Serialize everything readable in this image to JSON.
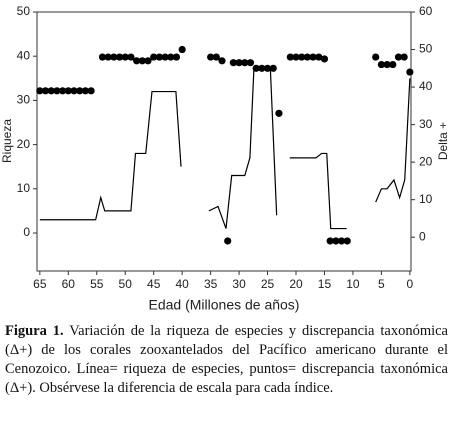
{
  "chart_data": {
    "type": "combo",
    "xlabel": "Edad (Millones de años)",
    "ylabel": "Riqueza",
    "y2label": "Delta +",
    "xlim": [
      65.5,
      -0.2
    ],
    "xticks": [
      65,
      60,
      55,
      50,
      45,
      40,
      35,
      30,
      25,
      20,
      15,
      10,
      5,
      0
    ],
    "ylim": [
      -8.6,
      50
    ],
    "yticks": [
      0,
      10,
      20,
      30,
      40,
      50
    ],
    "y2lim": [
      -9,
      60
    ],
    "y2ticks": [
      0,
      10,
      20,
      30,
      40,
      50,
      60
    ],
    "series": [
      {
        "type": "line",
        "color": "#000000",
        "x": [
          65,
          55.2,
          54.3,
          53.6,
          49,
          48.2,
          46.4,
          45.3,
          41.1,
          40.2,
          null,
          35.3,
          33.7,
          32.3,
          31.3,
          29,
          28.1,
          27.4,
          24.5,
          23.4,
          null,
          21.1,
          16.5,
          15.5,
          14.6,
          13.9,
          11.1,
          null,
          6,
          5,
          4,
          2.8,
          1.8,
          0.9,
          0
        ],
        "values": [
          3,
          3,
          8,
          5,
          5,
          18,
          18,
          32,
          32,
          15,
          null,
          5,
          6,
          1,
          13,
          13,
          17,
          37,
          37,
          4,
          null,
          17,
          17,
          18,
          18,
          1,
          1,
          null,
          7,
          10,
          10,
          12,
          8,
          12,
          35
        ]
      },
      {
        "type": "scatter",
        "axis": "y2",
        "color": "#000000",
        "x": [
          65,
          64,
          63,
          62,
          61,
          60,
          59,
          58,
          57,
          56,
          54,
          53,
          52,
          51,
          50,
          49,
          48,
          47,
          46,
          45,
          44,
          43,
          42,
          41,
          40,
          35,
          34,
          33,
          32,
          31,
          30,
          29,
          28,
          27,
          26,
          25,
          24,
          23,
          21,
          20,
          19,
          18,
          17,
          16,
          15,
          14,
          13,
          12,
          11,
          6,
          5,
          4,
          3,
          2,
          1,
          0
        ],
        "values": [
          39,
          39,
          39,
          39,
          39,
          39,
          39,
          39,
          39,
          39,
          48,
          48,
          48,
          48,
          48,
          48,
          47,
          47,
          47,
          48,
          48,
          48,
          48,
          48,
          50,
          48,
          48,
          47,
          -1,
          46.5,
          46.5,
          46.5,
          46.5,
          45,
          45,
          45,
          45,
          33,
          48,
          48,
          48,
          48,
          48,
          48,
          47.5,
          -1,
          -1,
          -1,
          -1,
          48,
          46,
          46,
          46,
          48,
          48,
          44
        ]
      }
    ]
  },
  "caption": {
    "label": "Figura 1.",
    "text": "Variación de la riqueza de especies y discrepancia taxonómica (Δ+) de los corales zooxantelados del Pacífico americano durante el Cenozoico. Línea= riqueza de especies, puntos= discrepancia taxonómica (Δ+). Obsérvese la diferencia de escala para cada índice."
  }
}
